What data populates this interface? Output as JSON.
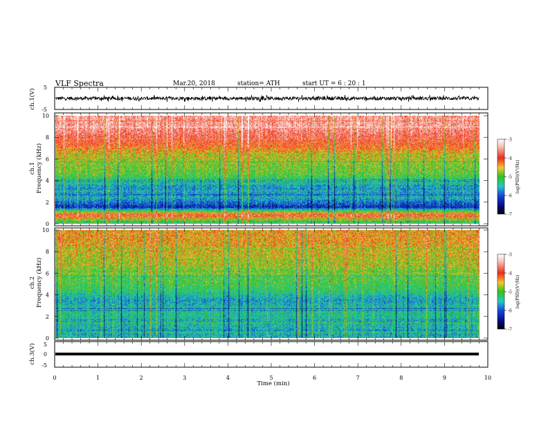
{
  "header": {
    "title": "VLF  Spectra",
    "date": "Mar.20, 2018",
    "station": "station= ATH",
    "start_time": "start  UT  =   6  : 20 : 1"
  },
  "axis_x": {
    "label": "Time  (min)",
    "ticks": [
      "0",
      "1",
      "2",
      "3",
      "4",
      "5",
      "6",
      "7",
      "8",
      "9",
      "10"
    ],
    "range": [
      0,
      10
    ]
  },
  "chart_data": [
    {
      "type": "line",
      "name": "ch1-waveform",
      "ylabel": "ch.1(V)",
      "ylim": [
        -5,
        5
      ],
      "y_ticks": [
        "5",
        "-5"
      ],
      "x_range": [
        0,
        9.8
      ],
      "amplitude_range": [
        -1.5,
        1.5
      ],
      "color": "#000000"
    },
    {
      "type": "heatmap",
      "name": "ch1-spectrogram",
      "ylabel": "ch.1\nFrequency  (kHz)",
      "ylim": [
        0,
        10
      ],
      "y_ticks": [
        "0",
        "2",
        "4",
        "6",
        "8",
        "10"
      ],
      "x_range": [
        0,
        9.8
      ],
      "colorbar": {
        "label": "log(PSD)(V²/Hz)",
        "ticks": [
          "-3",
          "-4",
          "-5",
          "-6",
          "-7"
        ],
        "range": [
          -7,
          -3
        ]
      },
      "level_profile": [
        {
          "freq_khz": 0.2,
          "log_psd": -5.0
        },
        {
          "freq_khz": 0.8,
          "log_psd": -3.8
        },
        {
          "freq_khz": 1.5,
          "log_psd": -6.3
        },
        {
          "freq_khz": 2.5,
          "log_psd": -5.5
        },
        {
          "freq_khz": 3.5,
          "log_psd": -5.7
        },
        {
          "freq_khz": 4.5,
          "log_psd": -5.0
        },
        {
          "freq_khz": 5.5,
          "log_psd": -4.8
        },
        {
          "freq_khz": 6.5,
          "log_psd": -4.5
        },
        {
          "freq_khz": 7.5,
          "log_psd": -4.0
        },
        {
          "freq_khz": 9.0,
          "log_psd": -3.5
        }
      ]
    },
    {
      "type": "heatmap",
      "name": "ch2-spectrogram",
      "ylabel": "ch.2\nFrequency  (kHz)",
      "ylim": [
        0,
        10
      ],
      "y_ticks": [
        "0",
        "2",
        "4",
        "6",
        "8",
        "10"
      ],
      "x_range": [
        0,
        9.8
      ],
      "colorbar": {
        "label": "log(PSD)(V²/Hz)",
        "ticks": [
          "-3",
          "-4",
          "-5",
          "-6",
          "-7"
        ],
        "range": [
          -7,
          -3
        ]
      },
      "level_profile": [
        {
          "freq_khz": 0.5,
          "log_psd": -5.6
        },
        {
          "freq_khz": 1.5,
          "log_psd": -5.5
        },
        {
          "freq_khz": 2.5,
          "log_psd": -5.4
        },
        {
          "freq_khz": 3.5,
          "log_psd": -5.7
        },
        {
          "freq_khz": 4.5,
          "log_psd": -5.2
        },
        {
          "freq_khz": 5.5,
          "log_psd": -5.0
        },
        {
          "freq_khz": 6.5,
          "log_psd": -4.8
        },
        {
          "freq_khz": 7.5,
          "log_psd": -4.6
        },
        {
          "freq_khz": 9.0,
          "log_psd": -4.4
        }
      ]
    },
    {
      "type": "line",
      "name": "ch3-waveform",
      "ylabel": "ch.3(V)",
      "ylim": [
        -5,
        5
      ],
      "y_ticks": [
        "5",
        "0",
        "-5"
      ],
      "x_range": [
        0,
        9.8
      ],
      "level": -1.2,
      "color": "#000000"
    }
  ]
}
